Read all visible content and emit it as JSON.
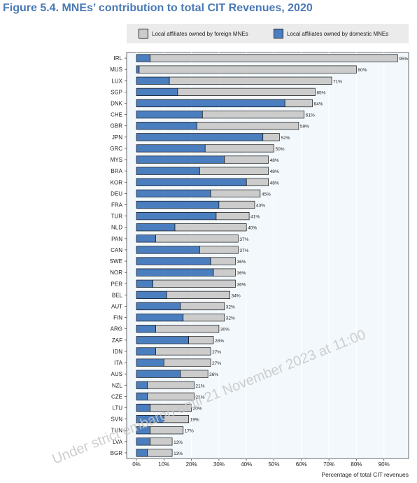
{
  "chart_data": {
    "type": "bar",
    "orientation": "horizontal",
    "stacked": true,
    "title": "Figure 5.4. MNEs’ contribution to total CIT Revenues, 2020",
    "xlabel": "Percentage of total CIT revenues",
    "ylabel": "",
    "xlim": [
      0,
      100
    ],
    "xticks": [
      "0%",
      "10%",
      "20%",
      "30%",
      "40%",
      "50%",
      "60%",
      "70%",
      "80%",
      "90%"
    ],
    "grid": true,
    "legend_position": "top",
    "colors": {
      "domestic": "#4a7ebf",
      "foreign": "#cccccc",
      "plot_bg": "#f2f8fc",
      "title": "#4a7ab5"
    },
    "categories": [
      "IRL",
      "MUS",
      "LUX",
      "SGP",
      "DNK",
      "CHE",
      "GBR",
      "JPN",
      "GRC",
      "MYS",
      "BRA",
      "KOR",
      "DEU",
      "FRA",
      "TUR",
      "NLD",
      "PAN",
      "CAN",
      "SWE",
      "NOR",
      "PER",
      "BEL",
      "AUT",
      "FIN",
      "ARG",
      "ZAF",
      "IDN",
      "ITA",
      "AUS",
      "NZL",
      "CZE",
      "LTU",
      "SVN",
      "TUN",
      "LVA",
      "BGR"
    ],
    "series": [
      {
        "name": "Local affiliates owned by domestic MNEs",
        "values": [
          5,
          1,
          12,
          15,
          54,
          24,
          22,
          46,
          25,
          32,
          23,
          40,
          27,
          30,
          29,
          14,
          7,
          23,
          27,
          28,
          6,
          11,
          16,
          17,
          7,
          19,
          7,
          10,
          16,
          4,
          4,
          5,
          10,
          5,
          5,
          4
        ]
      },
      {
        "name": "Local affiliates owned by foreign MNEs",
        "values": [
          90,
          79,
          59,
          50,
          10,
          37,
          37,
          6,
          25,
          16,
          25,
          8,
          18,
          13,
          12,
          26,
          30,
          14,
          9,
          8,
          30,
          23,
          16,
          15,
          23,
          9,
          20,
          17,
          10,
          17,
          17,
          15,
          9,
          12,
          8,
          9
        ]
      }
    ],
    "data_labels": [
      "95%",
      "80%",
      "71%",
      "65%",
      "64%",
      "61%",
      "59%",
      "52%",
      "50%",
      "48%",
      "48%",
      "48%",
      "45%",
      "43%",
      "41%",
      "40%",
      "37%",
      "37%",
      "36%",
      "36%",
      "36%",
      "34%",
      "32%",
      "32%",
      "30%",
      "28%",
      "27%",
      "27%",
      "26%",
      "21%",
      "21%",
      "20%",
      "19%",
      "17%",
      "13%",
      "13%"
    ]
  },
  "watermark": "Under strict embargo until 21 November 2023 at 11:00"
}
